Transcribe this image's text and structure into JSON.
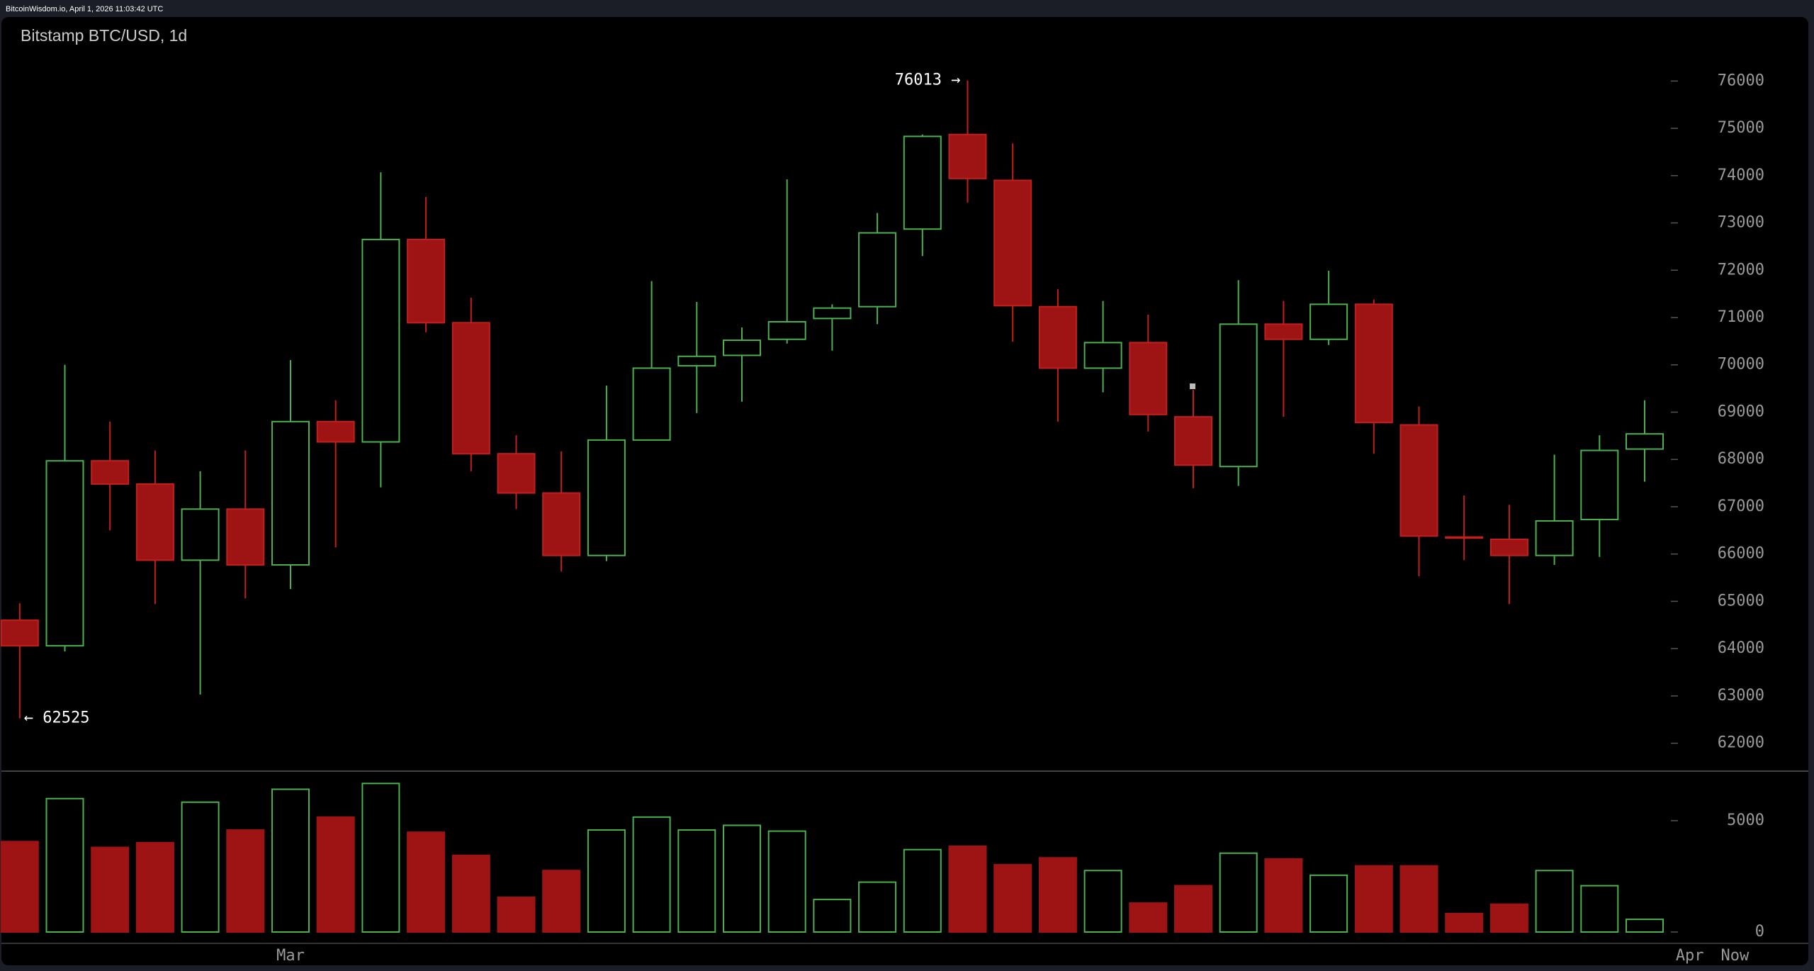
{
  "chart_data": {
    "type": "candlestick",
    "source": "BitcoinWisdom.io, April 1, 2026 11:03:42 UTC",
    "title": "Bitstamp BTC/USD, 1d",
    "x_axis_labels": [
      {
        "label": "Mar",
        "index": 6
      },
      {
        "label": "Apr",
        "index": 37
      },
      {
        "label": "Now",
        "index": 38
      }
    ],
    "open": [
      64600,
      64060,
      67970,
      67480,
      65870,
      66950,
      65770,
      68800,
      68370,
      72650,
      70890,
      68120,
      67290,
      65970,
      68410,
      69980,
      70200,
      70540,
      70980,
      71230,
      72870,
      74870,
      73900,
      71230,
      69930,
      70470,
      68900,
      67850,
      70860,
      70540,
      71280,
      68730,
      66360,
      66310,
      65970,
      66730,
      68220
    ],
    "high": [
      64960,
      70000,
      68800,
      68190,
      67750,
      68190,
      70100,
      69250,
      74070,
      73550,
      71420,
      68510,
      68170,
      69560,
      71770,
      71330,
      70790,
      73920,
      71280,
      73210,
      74870,
      76013,
      74680,
      71600,
      71350,
      71060,
      69470,
      71790,
      71350,
      71990,
      71380,
      69120,
      67240,
      67040,
      68100,
      68510,
      69250
    ],
    "low": [
      62525,
      63940,
      66500,
      64940,
      63030,
      65060,
      65260,
      66140,
      67410,
      70690,
      67750,
      66950,
      65630,
      65850,
      68410,
      68980,
      69220,
      70450,
      70300,
      70860,
      72300,
      73430,
      70490,
      68800,
      69420,
      68590,
      67390,
      67440,
      68900,
      70420,
      68120,
      65530,
      65870,
      64940,
      65770,
      65940,
      67530
    ],
    "close": [
      64060,
      67970,
      67480,
      65870,
      66950,
      65770,
      68800,
      68370,
      72650,
      70890,
      68120,
      67290,
      65970,
      68410,
      69930,
      70180,
      70520,
      70910,
      71200,
      72790,
      74830,
      73940,
      71250,
      69930,
      70470,
      68950,
      67880,
      70860,
      70540,
      71280,
      68780,
      66380,
      66340,
      65970,
      66700,
      68190,
      68540
    ],
    "volume": [
      4060,
      5990,
      3800,
      4010,
      5830,
      4580,
      6410,
      5160,
      6670,
      4480,
      3440,
      1560,
      2760,
      4580,
      5160,
      4580,
      4790,
      4530,
      1460,
      2240,
      3700,
      3850,
      3020,
      3330,
      2760,
      1300,
      2080,
      3540,
      3280,
      2550,
      2970,
      2970,
      830,
      1250,
      2760,
      2080,
      570
    ],
    "high_label": "76013 →",
    "low_label": "← 62525",
    "up_color": "#4caf50",
    "down_color": "#9e1313",
    "ylim": [
      61500,
      77000
    ],
    "yticks": [
      62000,
      63000,
      64000,
      65000,
      66000,
      67000,
      68000,
      69000,
      70000,
      71000,
      72000,
      73000,
      74000,
      75000,
      76000
    ],
    "volume_ylim": [
      0,
      7000
    ],
    "volume_ticks": [
      0,
      5000
    ]
  }
}
